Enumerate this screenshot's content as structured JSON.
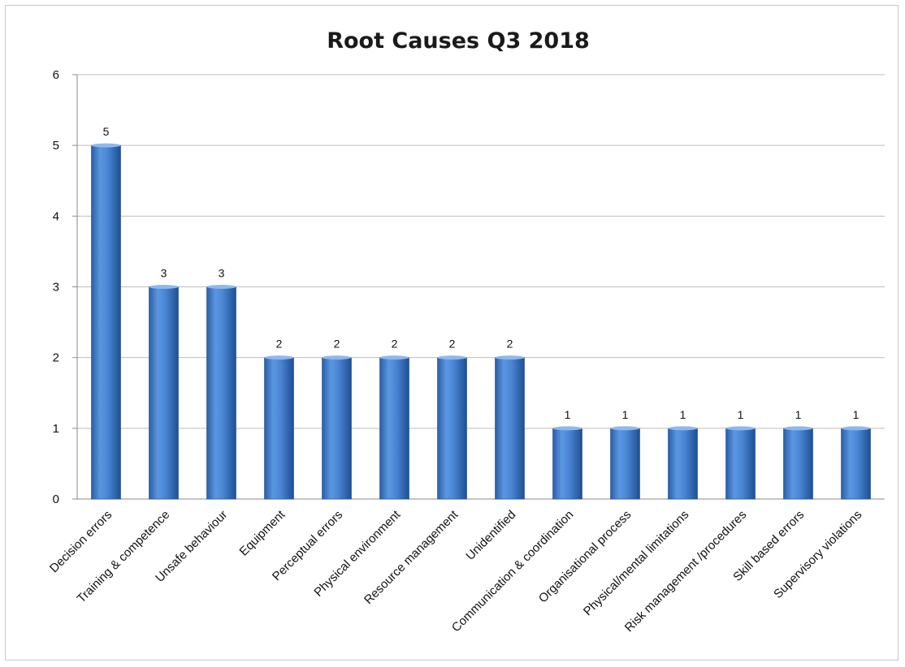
{
  "chart_data": {
    "type": "bar",
    "title": "Root Causes Q3 2018",
    "xlabel": "",
    "ylabel": "",
    "ylim": [
      0,
      6
    ],
    "yticks": [
      0,
      1,
      2,
      3,
      4,
      5,
      6
    ],
    "grid": true,
    "legend": "none",
    "bar_color": "#4a86d4",
    "categories": [
      "Decision errors",
      "Training & competence",
      "Unsafe behaviour",
      "Equipment",
      "Perceptual errors",
      "Physical environment",
      "Resource management",
      "Unidentified",
      "Communication & coordination",
      "Organisational process",
      "Physical/mental limitations",
      "Risk management /procedures",
      "Skill based errors",
      "Supervisory violations"
    ],
    "values": [
      5,
      3,
      3,
      2,
      2,
      2,
      2,
      2,
      1,
      1,
      1,
      1,
      1,
      1
    ],
    "data_labels": [
      "5",
      "3",
      "3",
      "2",
      "2",
      "2",
      "2",
      "2",
      "1",
      "1",
      "1",
      "1",
      "1",
      "1"
    ]
  }
}
